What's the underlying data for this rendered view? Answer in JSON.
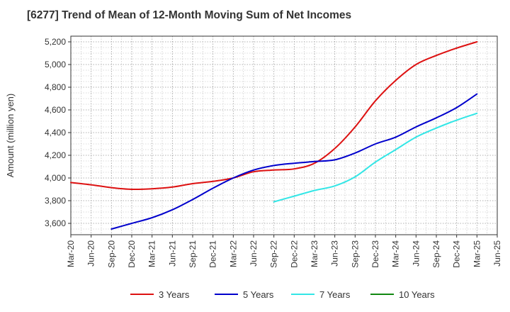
{
  "chart_data": {
    "type": "line",
    "title": "[6277]  Trend of Mean of 12-Month Moving Sum of Net Incomes",
    "ylabel": "Amount (million yen)",
    "xlabel": "",
    "ylim": [
      3500,
      5250
    ],
    "yticks": [
      3600,
      3800,
      4000,
      4200,
      4400,
      4600,
      4800,
      5000,
      5200
    ],
    "ytick_labels": [
      "3,600",
      "3,800",
      "4,000",
      "4,200",
      "4,400",
      "4,600",
      "4,800",
      "5,000",
      "5,200"
    ],
    "categories": [
      "Mar-20",
      "Jun-20",
      "Sep-20",
      "Dec-20",
      "Mar-21",
      "Jun-21",
      "Sep-21",
      "Dec-21",
      "Mar-22",
      "Jun-22",
      "Sep-22",
      "Dec-22",
      "Mar-23",
      "Jun-23",
      "Sep-23",
      "Dec-23",
      "Mar-24",
      "Jun-24",
      "Sep-24",
      "Dec-24",
      "Mar-25",
      "Jun-25"
    ],
    "grid": true,
    "legend_position": "bottom",
    "series": [
      {
        "name": "3 Years",
        "color": "#dd1111",
        "values": [
          3960,
          3940,
          3915,
          3900,
          3905,
          3920,
          3950,
          3970,
          4000,
          4055,
          4070,
          4080,
          4130,
          4260,
          4450,
          4680,
          4860,
          5000,
          5080,
          5145,
          5200,
          null
        ]
      },
      {
        "name": "5 Years",
        "color": "#0000cc",
        "values": [
          null,
          null,
          3550,
          3600,
          3650,
          3720,
          3810,
          3910,
          4000,
          4070,
          4110,
          4130,
          4145,
          4160,
          4220,
          4300,
          4360,
          4450,
          4530,
          4620,
          4740,
          null
        ]
      },
      {
        "name": "7 Years",
        "color": "#33e6e6",
        "values": [
          null,
          null,
          null,
          null,
          null,
          null,
          null,
          null,
          null,
          null,
          3790,
          3840,
          3890,
          3930,
          4010,
          4140,
          4250,
          4360,
          4440,
          4510,
          4570,
          null
        ]
      },
      {
        "name": "10 Years",
        "color": "#118811",
        "values": [
          null,
          null,
          null,
          null,
          null,
          null,
          null,
          null,
          null,
          null,
          null,
          null,
          null,
          null,
          null,
          null,
          null,
          null,
          null,
          null,
          null,
          null
        ]
      }
    ]
  }
}
